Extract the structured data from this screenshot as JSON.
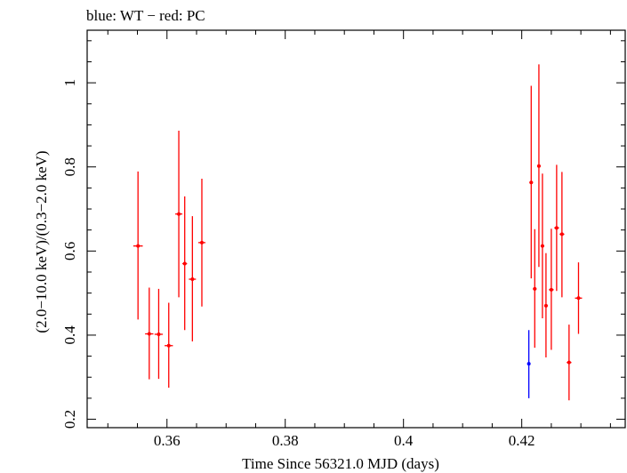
{
  "chart_data": {
    "type": "scatter",
    "title": "blue: WT − red: PC",
    "xlabel": "Time Since 56321.0 MJD (days)",
    "ylabel": "(2.0−10.0 keV)/(0.3−2.0 keV)",
    "xlim": [
      0.3465,
      0.4375
    ],
    "ylim": [
      0.18,
      1.125
    ],
    "x_ticks": [
      0.36,
      0.38,
      0.4,
      0.42
    ],
    "x_tick_labels": [
      "0.36",
      "0.38",
      "0.4",
      "0.42"
    ],
    "x_minor_step": 0.005,
    "y_ticks": [
      0.2,
      0.4,
      0.6,
      0.8,
      1.0
    ],
    "y_tick_labels": [
      "0.2",
      "0.4",
      "0.6",
      "0.8",
      "1"
    ],
    "y_minor_step": 0.05,
    "grid": false,
    "series": [
      {
        "name": "WT",
        "color": "#0000ff",
        "points": [
          {
            "x": 0.4212,
            "y": 0.332,
            "xerr": 0.0002,
            "yerr_low": 0.082,
            "yerr_high": 0.08
          }
        ]
      },
      {
        "name": "PC",
        "color": "#ff0000",
        "points": [
          {
            "x": 0.3551,
            "y": 0.612,
            "xerr": 0.0008,
            "yerr_low": 0.175,
            "yerr_high": 0.177
          },
          {
            "x": 0.357,
            "y": 0.403,
            "xerr": 0.0007,
            "yerr_low": 0.108,
            "yerr_high": 0.11
          },
          {
            "x": 0.3586,
            "y": 0.402,
            "xerr": 0.0007,
            "yerr_low": 0.106,
            "yerr_high": 0.108
          },
          {
            "x": 0.3603,
            "y": 0.375,
            "xerr": 0.0007,
            "yerr_low": 0.1,
            "yerr_high": 0.102
          },
          {
            "x": 0.362,
            "y": 0.688,
            "xerr": 0.0006,
            "yerr_low": 0.198,
            "yerr_high": 0.198
          },
          {
            "x": 0.363,
            "y": 0.57,
            "xerr": 0.0004,
            "yerr_low": 0.158,
            "yerr_high": 0.16
          },
          {
            "x": 0.3643,
            "y": 0.533,
            "xerr": 0.0006,
            "yerr_low": 0.148,
            "yerr_high": 0.15
          },
          {
            "x": 0.3659,
            "y": 0.62,
            "xerr": 0.0006,
            "yerr_low": 0.152,
            "yerr_high": 0.152
          },
          {
            "x": 0.4216,
            "y": 0.763,
            "xerr": 0.0003,
            "yerr_low": 0.228,
            "yerr_high": 0.23
          },
          {
            "x": 0.4222,
            "y": 0.51,
            "xerr": 0.0003,
            "yerr_low": 0.14,
            "yerr_high": 0.142
          },
          {
            "x": 0.4229,
            "y": 0.802,
            "xerr": 0.0003,
            "yerr_low": 0.24,
            "yerr_high": 0.242
          },
          {
            "x": 0.4235,
            "y": 0.612,
            "xerr": 0.0003,
            "yerr_low": 0.172,
            "yerr_high": 0.172
          },
          {
            "x": 0.4241,
            "y": 0.47,
            "xerr": 0.0003,
            "yerr_low": 0.123,
            "yerr_high": 0.125
          },
          {
            "x": 0.425,
            "y": 0.508,
            "xerr": 0.0004,
            "yerr_low": 0.143,
            "yerr_high": 0.145
          },
          {
            "x": 0.4259,
            "y": 0.655,
            "xerr": 0.0004,
            "yerr_low": 0.15,
            "yerr_high": 0.15
          },
          {
            "x": 0.4268,
            "y": 0.64,
            "xerr": 0.0004,
            "yerr_low": 0.15,
            "yerr_high": 0.148
          },
          {
            "x": 0.428,
            "y": 0.335,
            "xerr": 0.0004,
            "yerr_low": 0.09,
            "yerr_high": 0.09
          },
          {
            "x": 0.4296,
            "y": 0.488,
            "xerr": 0.0006,
            "yerr_low": 0.085,
            "yerr_high": 0.085
          }
        ]
      }
    ]
  }
}
